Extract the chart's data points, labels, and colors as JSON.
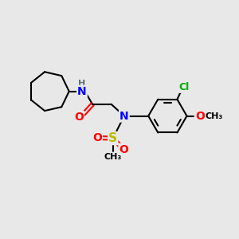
{
  "background_color": "#e8e8e8",
  "atom_colors": {
    "C": "#000000",
    "H": "#607070",
    "N": "#0000ff",
    "O": "#ff0000",
    "S": "#bbbb00",
    "Cl": "#00aa00"
  },
  "bond_color": "#000000",
  "bond_width": 1.5,
  "figsize": [
    3.0,
    3.0
  ],
  "dpi": 100,
  "xlim": [
    0,
    10
  ],
  "ylim": [
    0,
    10
  ]
}
